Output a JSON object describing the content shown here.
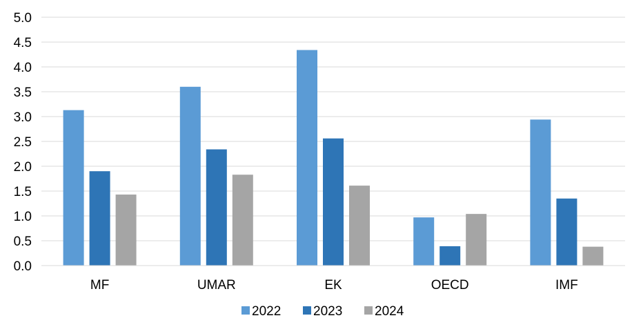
{
  "chart_data": {
    "type": "bar",
    "title": "",
    "xlabel": "",
    "ylabel": "",
    "categories": [
      "MF",
      "UMAR",
      "EK",
      "OECD",
      "IMF"
    ],
    "series": [
      {
        "name": "2022",
        "color": "#5b9bd5",
        "values": [
          3.13,
          3.6,
          4.34,
          0.97,
          2.94
        ]
      },
      {
        "name": "2023",
        "color": "#2e75b6",
        "values": [
          1.9,
          2.34,
          2.56,
          0.39,
          1.35
        ]
      },
      {
        "name": "2024",
        "color": "#a5a5a5",
        "values": [
          1.43,
          1.83,
          1.61,
          1.04,
          0.38
        ]
      }
    ],
    "ylim": [
      0,
      5
    ],
    "yticks": [
      "0.0",
      "0.5",
      "1.0",
      "1.5",
      "2.0",
      "2.5",
      "3.0",
      "3.5",
      "4.0",
      "4.5",
      "5.0"
    ],
    "grid": true,
    "legend_position": "bottom"
  }
}
